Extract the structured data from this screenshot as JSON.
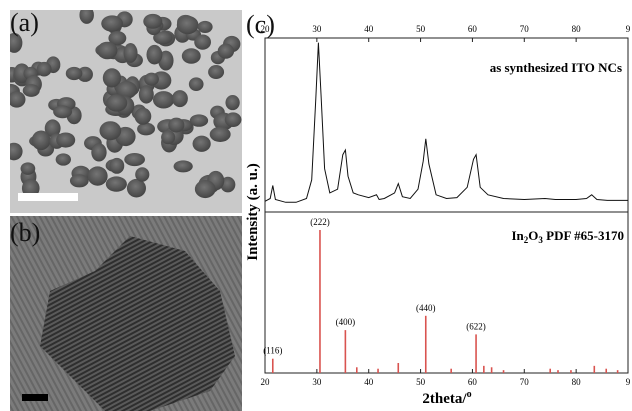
{
  "figure": {
    "panel_a_label": "(a)",
    "panel_b_label": "(b)",
    "panel_c_label": "(c)"
  },
  "chart_data": [
    {
      "type": "line",
      "panel": "top",
      "annotation": "as synthesized ITO NCs",
      "xlim": [
        20,
        90
      ],
      "x_ticks": [
        "20",
        "30",
        "40",
        "50",
        "60",
        "70",
        "80",
        "9"
      ],
      "y_label": "Intensity (a. u.)",
      "series": [
        {
          "x": [
            20,
            21,
            21.5,
            22,
            24,
            26,
            28,
            29,
            29.8,
            30.3,
            30.8,
            31.5,
            32.5,
            34,
            35,
            35.5,
            36,
            37,
            38,
            40,
            41.5,
            42,
            43,
            45,
            45.7,
            46.5,
            48,
            49.5,
            50.5,
            51,
            51.6,
            53,
            55,
            57,
            59,
            60.2,
            60.7,
            61.5,
            63,
            66,
            70,
            74,
            76,
            80,
            82,
            83,
            84,
            86,
            88,
            90
          ],
          "y": [
            5,
            8,
            22,
            7,
            4,
            4,
            8,
            28,
            115,
            175,
            120,
            40,
            14,
            18,
            55,
            60,
            32,
            14,
            12,
            9,
            12,
            7,
            8,
            14,
            24,
            10,
            8,
            18,
            48,
            72,
            45,
            12,
            8,
            9,
            20,
            50,
            55,
            20,
            12,
            8,
            7,
            8,
            7,
            7,
            8,
            12,
            7,
            6,
            6,
            6
          ]
        }
      ]
    },
    {
      "type": "bar",
      "panel": "bottom",
      "annotation_prefix": "In",
      "annotation_sub1": "2",
      "annotation_mid": "O",
      "annotation_sub2": "3",
      "annotation_suffix": " PDF #65-3170",
      "xlim": [
        20,
        90
      ],
      "x_ticks": [
        "20",
        "30",
        "40",
        "50",
        "60",
        "70",
        "80",
        "9"
      ],
      "xlabel": "2theta/",
      "xlabel_degree": "o",
      "ylim": [
        0,
        100
      ],
      "peaks": [
        {
          "x": 21.5,
          "y": 10,
          "label": "(116)"
        },
        {
          "x": 30.6,
          "y": 100,
          "label": "(222)"
        },
        {
          "x": 35.5,
          "y": 30,
          "label": "(400)"
        },
        {
          "x": 37.7,
          "y": 4,
          "label": ""
        },
        {
          "x": 41.8,
          "y": 3,
          "label": ""
        },
        {
          "x": 45.7,
          "y": 7,
          "label": ""
        },
        {
          "x": 51.0,
          "y": 40,
          "label": "(440)"
        },
        {
          "x": 55.9,
          "y": 3,
          "label": ""
        },
        {
          "x": 60.7,
          "y": 27,
          "label": "(622)"
        },
        {
          "x": 62.2,
          "y": 5,
          "label": ""
        },
        {
          "x": 63.7,
          "y": 4,
          "label": ""
        },
        {
          "x": 66.0,
          "y": 2,
          "label": ""
        },
        {
          "x": 75.0,
          "y": 3,
          "label": ""
        },
        {
          "x": 76.5,
          "y": 2,
          "label": ""
        },
        {
          "x": 79.0,
          "y": 2,
          "label": ""
        },
        {
          "x": 83.5,
          "y": 5,
          "label": ""
        },
        {
          "x": 85.8,
          "y": 3,
          "label": ""
        },
        {
          "x": 88.0,
          "y": 2,
          "label": ""
        }
      ],
      "bar_color": "#d9534f"
    }
  ]
}
